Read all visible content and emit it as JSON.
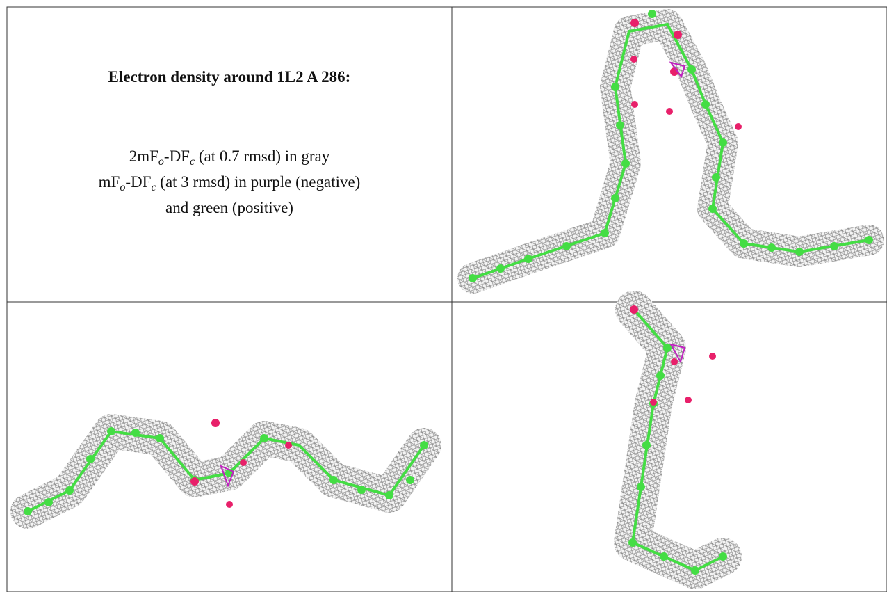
{
  "panel": {
    "title": "Electron density around 1L2 A 286:",
    "lines": [
      [
        "2mF",
        "o",
        "-DF",
        "c",
        " (at 0.7 rmsd) in gray"
      ],
      [
        "mF",
        "o",
        "-DF",
        "c",
        " (at 3 rmsd) in purple (negative)"
      ],
      [
        "and green (positive)"
      ]
    ]
  }
}
